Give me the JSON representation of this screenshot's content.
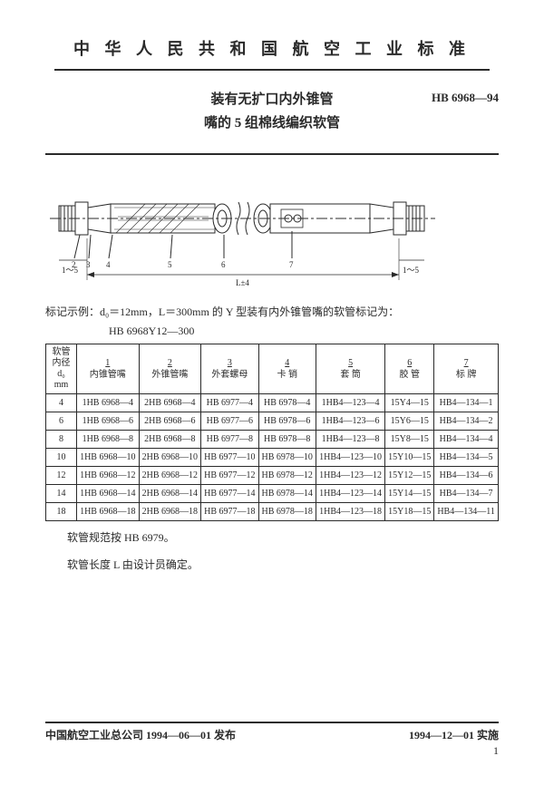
{
  "header": "中 华 人 民 共 和 国 航 空 工 业 标 准",
  "title_line1": "装有无扩口内外锥管",
  "title_line2": "嘴的 5 组棉线编织软管",
  "std_code": "HB 6968—94",
  "diagram": {
    "callouts": [
      "2",
      "3",
      "4",
      "5",
      "6",
      "7"
    ],
    "dim_left": "1～5",
    "dim_right": "1～5",
    "dim_span": "L±4"
  },
  "example_label": "标记示例：d₀＝12mm，L＝300mm 的 Y 型装有内外锥管嘴的软管标记为：",
  "example_code": "HB 6968Y12—300",
  "table": {
    "row_header_lines": [
      "软管",
      "内径",
      "d₀",
      "mm"
    ],
    "columns": [
      {
        "num": "1",
        "label": "内锥管嘴"
      },
      {
        "num": "2",
        "label": "外锥管嘴"
      },
      {
        "num": "3",
        "label": "外套螺母"
      },
      {
        "num": "4",
        "label": "卡 销"
      },
      {
        "num": "5",
        "label": "套 筒"
      },
      {
        "num": "6",
        "label": "胶 管"
      },
      {
        "num": "7",
        "label": "标 牌"
      }
    ],
    "rows": [
      {
        "d": "4",
        "c": [
          "1HB 6968—4",
          "2HB 6968—4",
          "HB 6977—4",
          "HB 6978—4",
          "1HB4—123—4",
          "15Y4—15",
          "HB4—134—1"
        ]
      },
      {
        "d": "6",
        "c": [
          "1HB 6968—6",
          "2HB 6968—6",
          "HB 6977—6",
          "HB 6978—6",
          "1HB4—123—6",
          "15Y6—15",
          "HB4—134—2"
        ]
      },
      {
        "d": "8",
        "c": [
          "1HB 6968—8",
          "2HB 6968—8",
          "HB 6977—8",
          "HB 6978—8",
          "1HB4—123—8",
          "15Y8—15",
          "HB4—134—4"
        ]
      },
      {
        "d": "10",
        "c": [
          "1HB 6968—10",
          "2HB 6968—10",
          "HB 6977—10",
          "HB 6978—10",
          "1HB4—123—10",
          "15Y10—15",
          "HB4—134—5"
        ]
      },
      {
        "d": "12",
        "c": [
          "1HB 6968—12",
          "2HB 6968—12",
          "HB 6977—12",
          "HB 6978—12",
          "1HB4—123—12",
          "15Y12—15",
          "HB4—134—6"
        ]
      },
      {
        "d": "14",
        "c": [
          "1HB 6968—14",
          "2HB 6968—14",
          "HB 6977—14",
          "HB 6978—14",
          "1HB4—123—14",
          "15Y14—15",
          "HB4—134—7"
        ]
      },
      {
        "d": "18",
        "c": [
          "1HB 6968—18",
          "2HB 6968—18",
          "HB 6977—18",
          "HB 6978—18",
          "1HB4—123—18",
          "15Y18—15",
          "HB4—134—11"
        ]
      }
    ]
  },
  "note1": "软管规范按 HB 6979。",
  "note2": "软管长度 L 由设计员确定。",
  "footer_left": "中国航空工业总公司 1994—06—01 发布",
  "footer_right": "1994—12—01 实施",
  "page_num": "1"
}
